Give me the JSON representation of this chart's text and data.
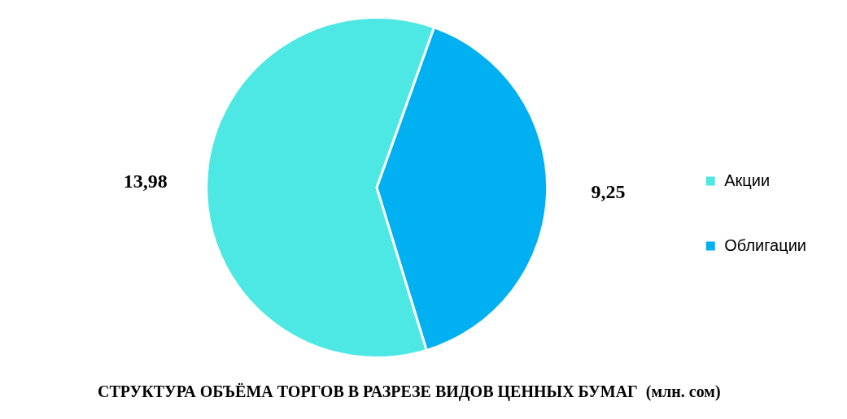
{
  "chart_data": {
    "type": "pie",
    "title": "СТРУКТУРА ОБЪЁМА ТОРГОВ В РАЗРЕЗЕ ВИДОВ ЦЕННЫХ БУМАГ  (млн. сом)",
    "categories": [
      "Акции",
      "Облигации"
    ],
    "values": [
      13.98,
      9.25
    ],
    "colors": [
      "#4de8e4",
      "#00b0f0"
    ],
    "value_labels": [
      "13,98",
      "9,25"
    ],
    "legend": "right"
  }
}
